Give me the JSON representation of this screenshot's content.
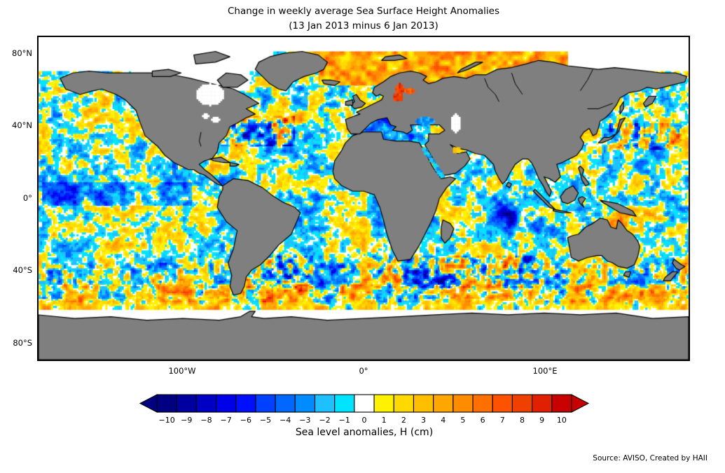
{
  "figure": {
    "title_line1": "Change in weekly average Sea Surface Height Anomalies",
    "title_line2": "(13 Jan 2013 minus 6 Jan 2013)",
    "source": "Source: AVISO, Created by HAII"
  },
  "map": {
    "y_ticks": [
      "80°N",
      "40°N",
      "0°",
      "40°S",
      "80°S"
    ],
    "x_ticks": [
      "100°W",
      "0°",
      "100°E"
    ],
    "land_color": "#7F7F7F",
    "coast_color": "#000000",
    "no_data_color": "#FFFFFF"
  },
  "colorbar": {
    "label": "Sea level anomalies, H (cm)",
    "ticks": [
      "−10",
      "−9",
      "−8",
      "−7",
      "−6",
      "−5",
      "−4",
      "−3",
      "−2",
      "−1",
      "0",
      "1",
      "2",
      "3",
      "4",
      "5",
      "6",
      "7",
      "8",
      "9",
      "10"
    ],
    "colors": [
      "#000080",
      "#0000A0",
      "#0000C4",
      "#0000E8",
      "#0010FF",
      "#0040FF",
      "#0068FF",
      "#008CFF",
      "#1FC0FF",
      "#00E4FF",
      "#FFFFFF",
      "#FFF200",
      "#FFD900",
      "#FFBF00",
      "#FFA600",
      "#FF8C00",
      "#FF7000",
      "#FF5200",
      "#F04000",
      "#E02000",
      "#C80000"
    ]
  },
  "chart_data": {
    "type": "heatmap",
    "title": "Change in weekly average Sea Surface Height Anomalies",
    "subtitle": "(13 Jan 2013 minus 6 Jan 2013)",
    "projection": "equirectangular",
    "lon_range": [
      -180,
      180
    ],
    "lat_range": [
      -90,
      90
    ],
    "x_tick_labels": [
      "100°W",
      "0°",
      "100°E"
    ],
    "y_tick_labels": [
      "80°N",
      "40°N",
      "0°",
      "40°S",
      "80°S"
    ],
    "colorbar": {
      "label": "Sea level anomalies, H (cm)",
      "units": "cm",
      "tick_values": [
        -10,
        -9,
        -8,
        -7,
        -6,
        -5,
        -4,
        -3,
        -2,
        -1,
        0,
        1,
        2,
        3,
        4,
        5,
        6,
        7,
        8,
        9,
        10
      ],
      "bin_width": 1,
      "colors": [
        "#000080",
        "#0000A0",
        "#0000C4",
        "#0000E8",
        "#0010FF",
        "#0040FF",
        "#0068FF",
        "#008CFF",
        "#1FC0FF",
        "#00E4FF",
        "#FFFFFF",
        "#FFF200",
        "#FFD900",
        "#FFBF00",
        "#FFA600",
        "#FF8C00",
        "#FF7000",
        "#FF5200",
        "#F04000",
        "#E02000",
        "#C80000"
      ],
      "arrow_ends": true
    },
    "features": [
      {
        "region": "Barents / Kara Seas (Arctic north of Scandinavia-Russia)",
        "lon": [
          -20,
          110
        ],
        "lat": [
          64,
          82
        ],
        "anomaly_cm": "+2 to +8, broad yellow-orange band with red patches"
      },
      {
        "region": "Baltic Sea",
        "lon": [
          9,
          30
        ],
        "lat": [
          54,
          66
        ],
        "anomaly_cm": "+7 to +10, strong red"
      },
      {
        "region": "Mediterranean and Black Sea",
        "lon": [
          -5,
          42
        ],
        "lat": [
          30,
          46
        ],
        "anomaly_cm": "-2 to -5, blue"
      },
      {
        "region": "Gulf Stream off US east coast",
        "lon": [
          -78,
          -40
        ],
        "lat": [
          30,
          45
        ],
        "anomaly_cm": "alternating -10 to +10 mesoscale eddies"
      },
      {
        "region": "Kuroshio extension east of Japan",
        "lon": [
          138,
          175
        ],
        "lat": [
          28,
          42
        ],
        "anomaly_cm": "alternating -10 to +10 eddies"
      },
      {
        "region": "Agulhas return current south of Africa",
        "lon": [
          5,
          90
        ],
        "lat": [
          -48,
          -33
        ],
        "anomaly_cm": "alternating -10 to +10 eddies"
      },
      {
        "region": "Brazil-Malvinas confluence east of Argentina",
        "lon": [
          -65,
          -30
        ],
        "lat": [
          -50,
          -33
        ],
        "anomaly_cm": "alternating -10 to +10 eddies"
      },
      {
        "region": "Equatorial Pacific",
        "lon": [
          -178,
          -95
        ],
        "lat": [
          -4,
          9
        ],
        "anomaly_cm": "-3 to -7, chain of blue blobs"
      },
      {
        "region": "Central tropical Indian Ocean",
        "lon": [
          70,
          100
        ],
        "lat": [
          -18,
          0
        ],
        "anomaly_cm": "-4 to -8, dark blue patch"
      },
      {
        "region": "Gulf of Carpentaria / north of Australia",
        "lon": [
          133,
          145
        ],
        "lat": [
          -18,
          -8
        ],
        "anomaly_cm": "+4 to +8, orange-red"
      },
      {
        "region": "Southern Ocean band",
        "lon": [
          -180,
          180
        ],
        "lat": [
          -62,
          -48
        ],
        "anomaly_cm": "mostly +1 to +3 yellow with mixed eddies"
      },
      {
        "region": "Open subtropical oceans",
        "lon": [
          -180,
          180
        ],
        "lat": [
          -45,
          45
        ],
        "anomaly_cm": "-2 to +2 speckle of cyan/yellow over white"
      }
    ],
    "no_data_regions": [
      "Arctic Ocean north of ~82°N",
      "Canadian Arctic Archipelago and Hudson Bay",
      "Caspian Sea",
      "Ocean south of ~61°S (sea-ice zone above Antarctica)"
    ],
    "land_style": "gray continents (#7F7F7F) with black coastlines",
    "source": "Source: AVISO, Created by HAII"
  }
}
